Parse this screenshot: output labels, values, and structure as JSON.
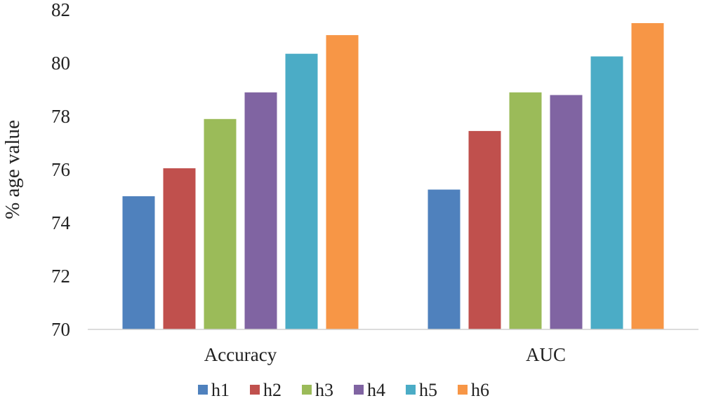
{
  "chart_data": {
    "type": "bar",
    "title": "",
    "xlabel": "",
    "ylabel": "% age value",
    "ylim": [
      70,
      82
    ],
    "yticks": [
      70,
      72,
      74,
      76,
      78,
      80,
      82
    ],
    "grid": false,
    "legend_position": "bottom",
    "categories": [
      "Accuracy",
      "AUC"
    ],
    "series": [
      {
        "name": "h1",
        "color": "#4F81BD",
        "values": [
          75.0,
          75.25
        ]
      },
      {
        "name": "h2",
        "color": "#C0504D",
        "values": [
          76.05,
          77.45
        ]
      },
      {
        "name": "h3",
        "color": "#9BBB59",
        "values": [
          77.9,
          78.9
        ]
      },
      {
        "name": "h4",
        "color": "#8064A2",
        "values": [
          78.9,
          78.8
        ]
      },
      {
        "name": "h5",
        "color": "#4BACC6",
        "values": [
          80.35,
          80.25
        ]
      },
      {
        "name": "h6",
        "color": "#F79646",
        "values": [
          81.05,
          81.5
        ]
      }
    ]
  }
}
